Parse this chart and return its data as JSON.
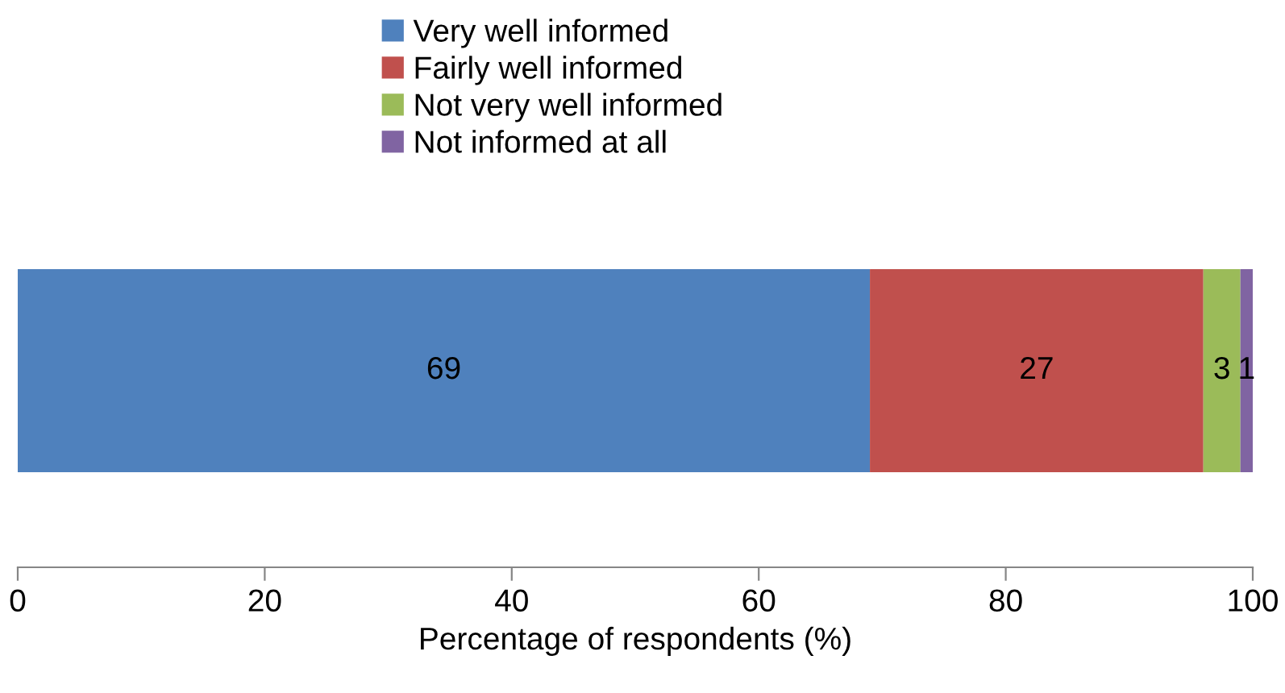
{
  "chart_data": {
    "type": "bar",
    "orientation": "horizontal",
    "stacked": true,
    "categories": [
      null
    ],
    "series": [
      {
        "name": "Very well informed",
        "color": "#4f81bd",
        "values": [
          69
        ]
      },
      {
        "name": "Fairly well informed",
        "color": "#c0504d",
        "values": [
          27
        ]
      },
      {
        "name": "Not very well informed",
        "color": "#9bbb59",
        "values": [
          3
        ]
      },
      {
        "name": "Not informed at all",
        "color": "#8064a2",
        "values": [
          1
        ]
      }
    ],
    "xlabel": "Percentage of respondents (%)",
    "xlim": [
      0,
      100
    ],
    "xticks": [
      0,
      20,
      40,
      60,
      80,
      100
    ],
    "data_labels": true,
    "legend": "top",
    "grid": false,
    "tick_labels": "x"
  }
}
